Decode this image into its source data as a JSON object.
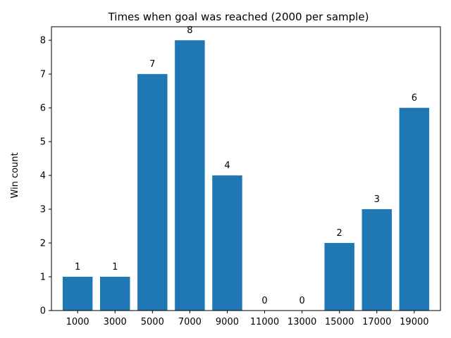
{
  "chart_data": {
    "type": "bar",
    "title": "Times when goal was reached (2000 per sample)",
    "xlabel": "",
    "ylabel": "Win count",
    "categories": [
      "1000",
      "3000",
      "5000",
      "7000",
      "9000",
      "11000",
      "13000",
      "15000",
      "17000",
      "19000"
    ],
    "values": [
      1,
      1,
      7,
      8,
      4,
      0,
      0,
      2,
      3,
      6
    ],
    "data_labels": [
      "1",
      "1",
      "7",
      "8",
      "4",
      "0",
      "0",
      "2",
      "3",
      "6"
    ],
    "ylim": [
      0,
      8.4
    ],
    "yticks": [
      0,
      1,
      2,
      3,
      4,
      5,
      6,
      7,
      8
    ],
    "ytick_labels": [
      "0",
      "1",
      "2",
      "3",
      "4",
      "5",
      "6",
      "7",
      "8"
    ],
    "grid": false,
    "bar_color": "#1f77b4"
  }
}
